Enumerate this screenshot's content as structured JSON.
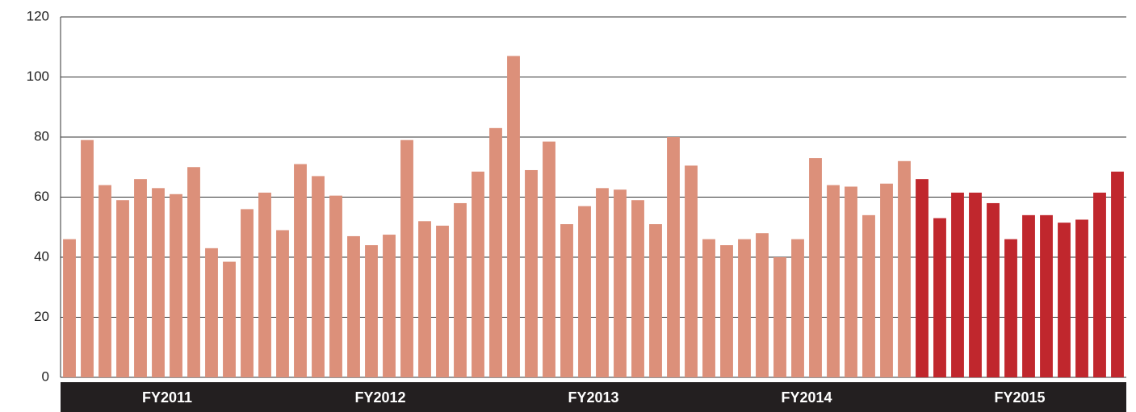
{
  "chart_data": {
    "type": "bar",
    "groups": [
      {
        "name": "FY2011",
        "color": "#dc907a",
        "values": [
          46,
          79,
          64,
          59,
          66,
          63,
          61,
          70,
          43,
          38.5,
          56,
          61.5
        ]
      },
      {
        "name": "FY2012",
        "color": "#dc907a",
        "values": [
          49,
          71,
          67,
          60.5,
          47,
          44,
          47.5,
          79,
          52,
          50.5,
          58,
          68.5
        ]
      },
      {
        "name": "FY2013",
        "color": "#dc907a",
        "values": [
          83,
          107,
          69,
          78.5,
          51,
          57,
          63,
          62.5,
          59,
          51,
          80,
          70.5
        ]
      },
      {
        "name": "FY2014",
        "color": "#dc907a",
        "values": [
          46,
          44,
          46,
          48,
          40,
          46,
          73,
          64,
          63.5,
          54,
          64.5,
          72
        ]
      },
      {
        "name": "FY2015",
        "color": "#c0272d",
        "values": [
          66,
          53,
          61.5,
          61.5,
          58,
          46,
          54,
          54,
          51.5,
          52.5,
          61.5,
          68.5
        ]
      }
    ],
    "ylim": [
      0,
      120
    ],
    "yticks": [
      0,
      20,
      40,
      60,
      80,
      100,
      120
    ],
    "grid": true
  }
}
